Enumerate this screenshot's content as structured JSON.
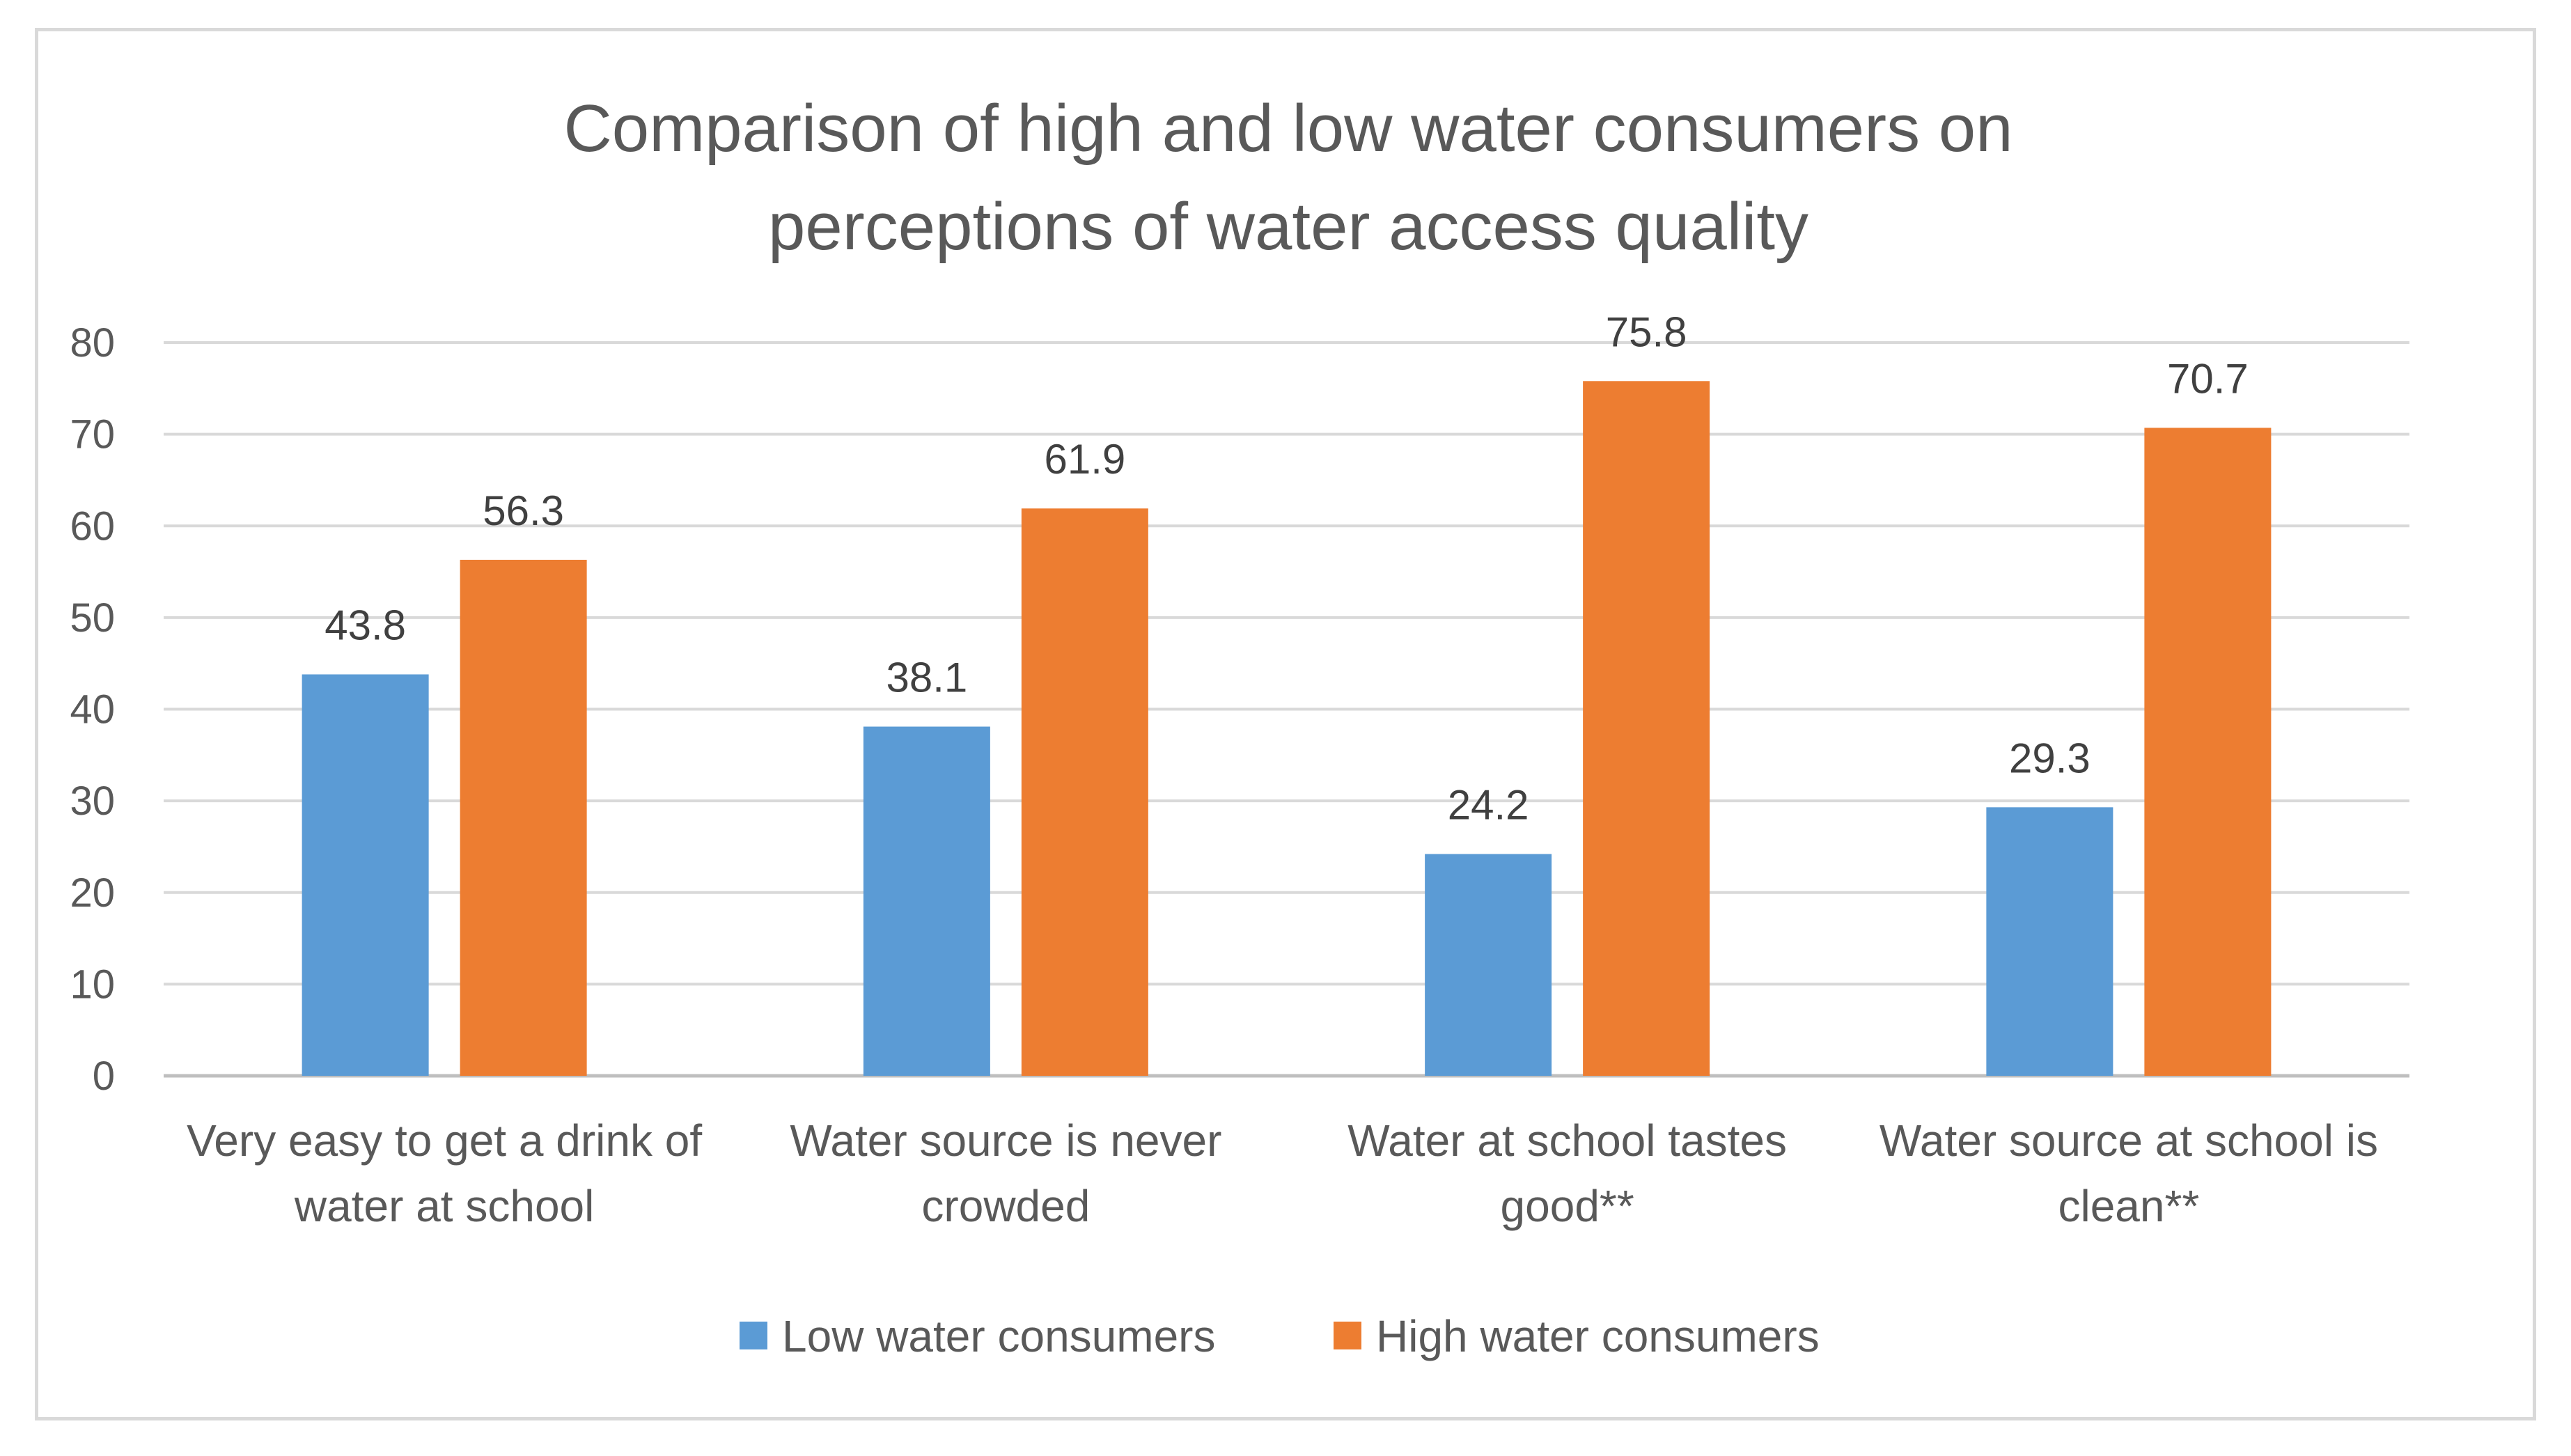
{
  "chart_data": {
    "type": "bar",
    "title": [
      "Comparison of high and low water consumers on",
      "perceptions of water access quality"
    ],
    "categories": [
      [
        "Very easy to get a drink of",
        "water at school"
      ],
      [
        "Water source is never",
        "crowded"
      ],
      [
        "Water at school tastes",
        "good**"
      ],
      [
        "Water source at school is",
        "clean**"
      ]
    ],
    "series": [
      {
        "name": "Low water consumers",
        "color": "#5b9bd5",
        "values": [
          43.8,
          38.1,
          24.2,
          29.3
        ]
      },
      {
        "name": "High water consumers",
        "color": "#ed7d31",
        "values": [
          56.3,
          61.9,
          75.8,
          70.7
        ]
      }
    ],
    "ylim": [
      0,
      80
    ],
    "yticks": [
      0,
      10,
      20,
      30,
      40,
      50,
      60,
      70,
      80
    ],
    "xlabel": "",
    "ylabel": "",
    "grid": true,
    "legend_position": "bottom"
  }
}
